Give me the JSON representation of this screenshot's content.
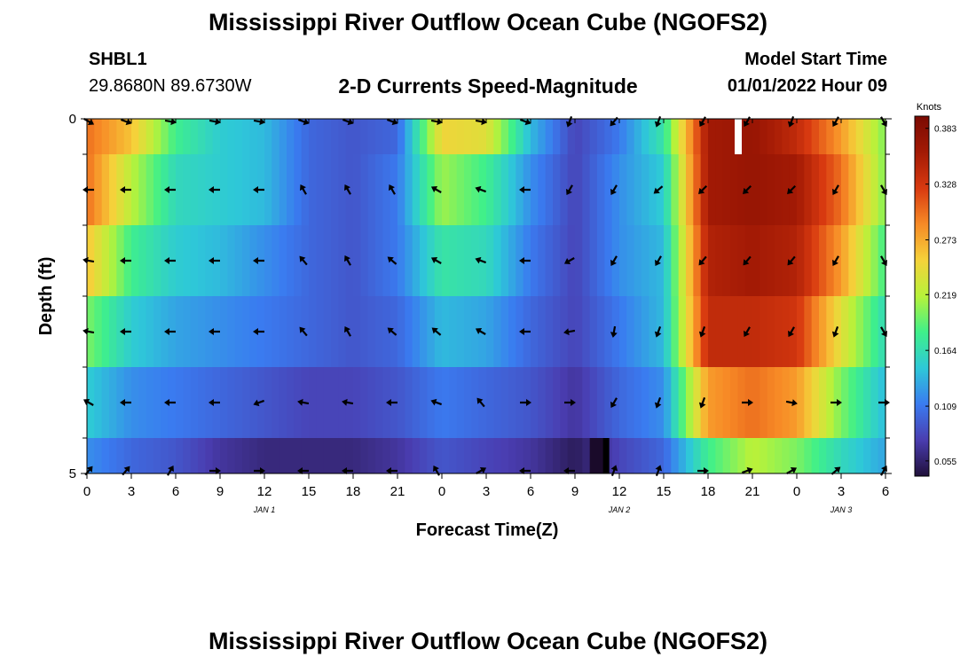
{
  "header": {
    "title": "Mississippi River Outflow Ocean Cube (NGOFS2)",
    "station": "SHBL1",
    "coords": "29.8680N  89.6730W",
    "subtitle": "2-D Currents Speed-Magnitude",
    "model_start_label": "Model Start Time",
    "model_start_value": "01/01/2022 Hour 09"
  },
  "footer": {
    "title": "Mississippi River Outflow Ocean Cube (NGOFS2)"
  },
  "chart_data": {
    "type": "heatmap",
    "xlabel": "Forecast Time(Z)",
    "ylabel": "Depth (ft)",
    "xlim": [
      0,
      54
    ],
    "ylim": [
      0,
      5
    ],
    "x_ticks": [
      0,
      3,
      6,
      9,
      12,
      15,
      18,
      21,
      24,
      27,
      30,
      33,
      36,
      39,
      42,
      45,
      48,
      51,
      54
    ],
    "x_tick_labels": [
      "0",
      "3",
      "6",
      "9",
      "12",
      "15",
      "18",
      "21",
      "0",
      "3",
      "6",
      "9",
      "12",
      "15",
      "18",
      "21",
      "0",
      "3",
      "6"
    ],
    "date_labels": [
      {
        "x": 12,
        "label": "JAN 1"
      },
      {
        "x": 36,
        "label": "JAN 2"
      },
      {
        "x": 51,
        "label": "JAN 3"
      }
    ],
    "y_tick_labels": [
      {
        "depth": 0,
        "label": "0"
      },
      {
        "depth": 5,
        "label": "5"
      }
    ],
    "colorbar": {
      "label": "Knots",
      "min": 0.04,
      "max": 0.395,
      "ticks": [
        0.055,
        0.109,
        0.164,
        0.219,
        0.273,
        0.328,
        0.383
      ],
      "tick_labels": [
        "0.055",
        "0.109",
        "0.164",
        "0.219",
        "0.273",
        "0.328",
        "0.383"
      ],
      "colors": [
        "#20103a",
        "#4a3db0",
        "#3a7bf0",
        "#2ec8d8",
        "#3ff08a",
        "#b7f23a",
        "#f5d23a",
        "#f78a26",
        "#d83a10",
        "#a31a05",
        "#7a0a02"
      ]
    },
    "depth_layers": [
      0,
      1,
      2,
      3,
      4,
      5
    ],
    "times": [
      0,
      3,
      6,
      9,
      12,
      15,
      18,
      21,
      24,
      27,
      30,
      33,
      36,
      39,
      42,
      45,
      48,
      51,
      54
    ],
    "speed": [
      [
        0.3,
        0.26,
        0.18,
        0.15,
        0.14,
        0.1,
        0.09,
        0.1,
        0.25,
        0.24,
        0.14,
        0.08,
        0.11,
        0.17,
        0.36,
        0.37,
        0.34,
        0.28,
        0.2
      ],
      [
        0.3,
        0.22,
        0.16,
        0.15,
        0.14,
        0.1,
        0.09,
        0.11,
        0.21,
        0.18,
        0.12,
        0.08,
        0.12,
        0.15,
        0.36,
        0.37,
        0.36,
        0.3,
        0.2
      ],
      [
        0.26,
        0.18,
        0.15,
        0.14,
        0.12,
        0.1,
        0.09,
        0.11,
        0.17,
        0.16,
        0.11,
        0.08,
        0.12,
        0.14,
        0.35,
        0.36,
        0.35,
        0.28,
        0.18
      ],
      [
        0.2,
        0.15,
        0.13,
        0.12,
        0.11,
        0.1,
        0.09,
        0.1,
        0.14,
        0.13,
        0.1,
        0.08,
        0.11,
        0.14,
        0.34,
        0.34,
        0.33,
        0.24,
        0.16
      ],
      [
        0.15,
        0.12,
        0.11,
        0.1,
        0.09,
        0.08,
        0.08,
        0.09,
        0.11,
        0.1,
        0.09,
        0.07,
        0.1,
        0.12,
        0.28,
        0.3,
        0.28,
        0.2,
        0.14
      ],
      [
        0.12,
        0.1,
        0.09,
        0.07,
        0.06,
        0.06,
        0.06,
        0.07,
        0.09,
        0.08,
        0.07,
        0.05,
        0.08,
        0.1,
        0.18,
        0.22,
        0.2,
        0.16,
        0.13
      ]
    ],
    "direction_deg": [
      [
        120,
        110,
        100,
        100,
        100,
        110,
        110,
        110,
        100,
        100,
        110,
        200,
        220,
        200,
        210,
        210,
        200,
        210,
        150
      ],
      [
        270,
        270,
        270,
        270,
        270,
        330,
        330,
        330,
        300,
        290,
        270,
        210,
        210,
        230,
        225,
        225,
        225,
        210,
        150
      ],
      [
        280,
        270,
        270,
        270,
        270,
        320,
        330,
        310,
        300,
        290,
        270,
        240,
        210,
        210,
        220,
        220,
        220,
        210,
        150
      ],
      [
        280,
        270,
        270,
        270,
        270,
        320,
        330,
        310,
        310,
        300,
        270,
        260,
        190,
        200,
        200,
        210,
        210,
        200,
        150
      ],
      [
        300,
        270,
        270,
        270,
        250,
        280,
        280,
        270,
        290,
        320,
        90,
        90,
        210,
        200,
        200,
        90,
        100,
        90,
        90
      ],
      [
        40,
        40,
        30,
        90,
        90,
        270,
        270,
        270,
        330,
        60,
        270,
        270,
        20,
        20,
        90,
        70,
        60,
        50,
        30
      ]
    ]
  }
}
